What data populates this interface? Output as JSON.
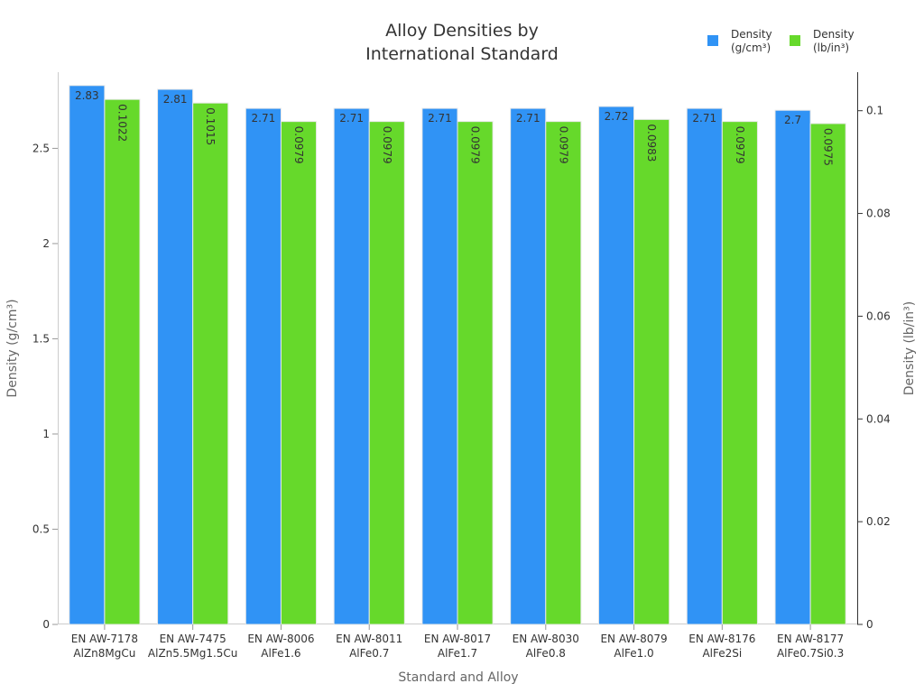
{
  "chart_data": {
    "type": "bar",
    "title": [
      "Alloy Densities by",
      "International Standard"
    ],
    "xlabel": "Standard and Alloy",
    "ylabel": "Density (g/cm³)",
    "y2label": "Density (lb/in³)",
    "legend_position": "top-right",
    "grid": false,
    "categories": [
      [
        "EN AW-7178",
        "AlZn8MgCu"
      ],
      [
        "EN AW-7475",
        "AlZn5.5Mg1.5Cu"
      ],
      [
        "EN AW-8006",
        "AlFe1.6"
      ],
      [
        "EN AW-8011",
        "AlFe0.7"
      ],
      [
        "EN AW-8017",
        "AlFe1.7"
      ],
      [
        "EN AW-8030",
        "AlFe0.8"
      ],
      [
        "EN AW-8079",
        "AlFe1.0"
      ],
      [
        "EN AW-8176",
        "AlFe2Si"
      ],
      [
        "EN AW-8177",
        "AlFe0.7Si0.3"
      ]
    ],
    "series": [
      {
        "name": "Density (g/cm³)",
        "legend_lines": [
          "Density",
          "(g/cm³)"
        ],
        "axis": "left",
        "color": "#3093f5",
        "values": [
          2.83,
          2.81,
          2.71,
          2.71,
          2.71,
          2.71,
          2.72,
          2.71,
          2.7
        ],
        "labels": [
          "2.83",
          "2.81",
          "2.71",
          "2.71",
          "2.71",
          "2.71",
          "2.72",
          "2.71",
          "2.7"
        ]
      },
      {
        "name": "Density (lb/in³)",
        "legend_lines": [
          "Density",
          "(lb/in³)"
        ],
        "axis": "right",
        "color": "#66d92b",
        "values": [
          0.1022,
          0.1015,
          0.0979,
          0.0979,
          0.0979,
          0.0979,
          0.0983,
          0.0979,
          0.0975
        ],
        "labels": [
          "0.1022",
          "0.1015",
          "0.0979",
          "0.0979",
          "0.0979",
          "0.0979",
          "0.0983",
          "0.0979",
          "0.0975"
        ]
      }
    ],
    "ylim": [
      0,
      2.9
    ],
    "y2lim": [
      0,
      0.1075
    ],
    "yticks": [
      0,
      0.5,
      1,
      1.5,
      2,
      2.5
    ],
    "ytick_labels": [
      "0",
      "0.5",
      "1",
      "1.5",
      "2",
      "2.5"
    ],
    "y2ticks": [
      0,
      0.02,
      0.04,
      0.06,
      0.08,
      0.1
    ],
    "y2tick_labels": [
      "0",
      "0.02",
      "0.04",
      "0.06",
      "0.08",
      "0.1"
    ]
  }
}
